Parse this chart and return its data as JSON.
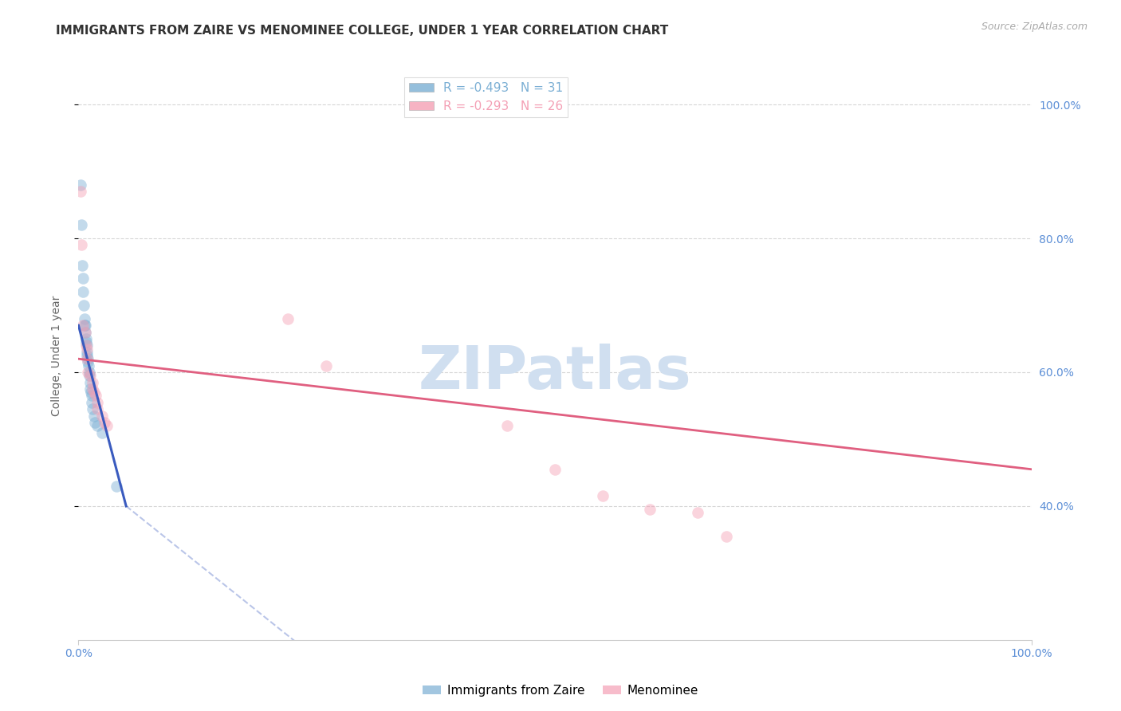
{
  "title": "IMMIGRANTS FROM ZAIRE VS MENOMINEE COLLEGE, UNDER 1 YEAR CORRELATION CHART",
  "source": "Source: ZipAtlas.com",
  "ylabel": "College, Under 1 year",
  "xlim": [
    0.0,
    100.0
  ],
  "ylim": [
    20.0,
    105.0
  ],
  "right_ytick_labels": [
    "100.0%",
    "80.0%",
    "60.0%",
    "40.0%"
  ],
  "right_ytick_values": [
    100.0,
    80.0,
    60.0,
    40.0
  ],
  "xtick_labels": [
    "0.0%",
    "100.0%"
  ],
  "xtick_values": [
    0.0,
    100.0
  ],
  "legend_entries": [
    {
      "label": "R = -0.493   N = 31",
      "color": "#7bafd4"
    },
    {
      "label": "R = -0.293   N = 26",
      "color": "#f4a0b5"
    }
  ],
  "blue_scatter": [
    [
      0.2,
      88
    ],
    [
      0.3,
      82
    ],
    [
      0.4,
      76
    ],
    [
      0.45,
      74
    ],
    [
      0.5,
      72
    ],
    [
      0.55,
      70
    ],
    [
      0.6,
      68
    ],
    [
      0.65,
      67
    ],
    [
      0.7,
      67
    ],
    [
      0.75,
      66
    ],
    [
      0.8,
      65
    ],
    [
      0.8,
      64.5
    ],
    [
      0.85,
      64
    ],
    [
      0.9,
      63
    ],
    [
      0.9,
      62.5
    ],
    [
      1.0,
      62
    ],
    [
      1.0,
      61.5
    ],
    [
      1.05,
      61
    ],
    [
      1.1,
      60
    ],
    [
      1.1,
      59.5
    ],
    [
      1.2,
      58.5
    ],
    [
      1.25,
      57.5
    ],
    [
      1.3,
      57
    ],
    [
      1.35,
      56.5
    ],
    [
      1.4,
      55.5
    ],
    [
      1.5,
      54.5
    ],
    [
      1.6,
      53.5
    ],
    [
      1.7,
      52.5
    ],
    [
      2.0,
      52
    ],
    [
      2.5,
      51
    ],
    [
      4.0,
      43
    ]
  ],
  "pink_scatter": [
    [
      0.2,
      87
    ],
    [
      0.3,
      79
    ],
    [
      0.5,
      67
    ],
    [
      0.7,
      66
    ],
    [
      0.8,
      64
    ],
    [
      0.9,
      63.5
    ],
    [
      0.9,
      62
    ],
    [
      1.0,
      60
    ],
    [
      1.2,
      59.5
    ],
    [
      1.5,
      58.5
    ],
    [
      1.5,
      57.5
    ],
    [
      1.6,
      57
    ],
    [
      1.8,
      56.5
    ],
    [
      2.0,
      55.5
    ],
    [
      2.0,
      54.5
    ],
    [
      2.5,
      53.5
    ],
    [
      2.7,
      52.5
    ],
    [
      3.0,
      52
    ],
    [
      22.0,
      68
    ],
    [
      26.0,
      61
    ],
    [
      45.0,
      52
    ],
    [
      50.0,
      45.5
    ],
    [
      55.0,
      41.5
    ],
    [
      60.0,
      39.5
    ],
    [
      65.0,
      39
    ],
    [
      68.0,
      35.5
    ]
  ],
  "blue_line": {
    "x": [
      0.0,
      5.0
    ],
    "y": [
      67.0,
      40.0
    ]
  },
  "blue_line_dashed": {
    "x": [
      5.0,
      55.0
    ],
    "y": [
      40.0,
      -17.0
    ]
  },
  "pink_line": {
    "x": [
      0.0,
      100.0
    ],
    "y": [
      62.0,
      45.5
    ]
  },
  "blue_scatter_color": "#7bafd4",
  "pink_scatter_color": "#f4a0b5",
  "blue_line_color": "#3a5bbf",
  "pink_line_color": "#e05f80",
  "background_color": "#ffffff",
  "grid_color": "#cccccc",
  "title_fontsize": 11,
  "source_fontsize": 9,
  "ylabel_fontsize": 10,
  "right_ytick_color": "#5b8ed6",
  "scatter_size": 110,
  "scatter_alpha": 0.45,
  "watermark": "ZIPatlas",
  "watermark_color": "#d0dff0"
}
